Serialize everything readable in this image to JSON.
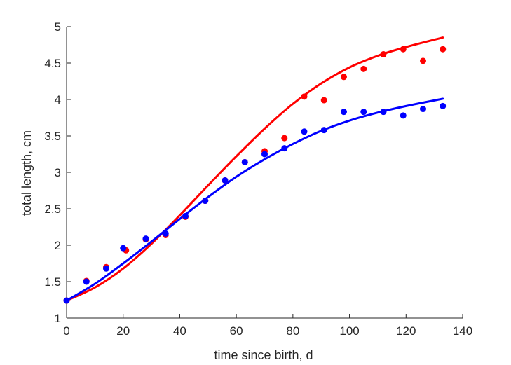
{
  "chart_data": {
    "type": "scatter",
    "xlabel": "time since birth, d",
    "ylabel": "total length, cm",
    "xlim": [
      0,
      140
    ],
    "ylim": [
      1,
      5
    ],
    "xticks": [
      0,
      20,
      40,
      60,
      80,
      100,
      120,
      140
    ],
    "yticks": [
      1,
      1.5,
      2,
      2.5,
      3,
      3.5,
      4,
      4.5,
      5
    ],
    "xtick_labels": [
      "0",
      "20",
      "40",
      "60",
      "80",
      "100",
      "120",
      "140"
    ],
    "ytick_labels": [
      "1",
      "1.5",
      "2",
      "2.5",
      "3",
      "3.5",
      "4",
      "4.5",
      "5"
    ],
    "grid": false,
    "series": [
      {
        "color": "#ff0000",
        "points": [
          [
            0,
            1.24
          ],
          [
            7,
            1.51
          ],
          [
            14,
            1.7
          ],
          [
            21,
            1.93
          ],
          [
            28,
            2.08
          ],
          [
            35,
            2.14
          ],
          [
            42,
            2.39
          ],
          [
            49,
            2.61
          ],
          [
            56,
            2.89
          ],
          [
            63,
            3.14
          ],
          [
            70,
            3.29
          ],
          [
            77,
            3.47
          ],
          [
            84,
            4.04
          ],
          [
            91,
            3.99
          ],
          [
            98,
            4.31
          ],
          [
            105,
            4.42
          ],
          [
            112,
            4.62
          ],
          [
            119,
            4.69
          ],
          [
            126,
            4.53
          ],
          [
            133,
            4.69
          ]
        ],
        "fit": [
          [
            0,
            1.24
          ],
          [
            10,
            1.42
          ],
          [
            20,
            1.68
          ],
          [
            30,
            2.02
          ],
          [
            40,
            2.41
          ],
          [
            50,
            2.82
          ],
          [
            60,
            3.22
          ],
          [
            70,
            3.6
          ],
          [
            80,
            3.94
          ],
          [
            90,
            4.22
          ],
          [
            100,
            4.44
          ],
          [
            110,
            4.6
          ],
          [
            120,
            4.72
          ],
          [
            133,
            4.85
          ]
        ]
      },
      {
        "color": "#0000ff",
        "points": [
          [
            0,
            1.24
          ],
          [
            7,
            1.5
          ],
          [
            14,
            1.68
          ],
          [
            20,
            1.96
          ],
          [
            28,
            2.09
          ],
          [
            35,
            2.16
          ],
          [
            42,
            2.4
          ],
          [
            49,
            2.61
          ],
          [
            56,
            2.89
          ],
          [
            63,
            3.14
          ],
          [
            70,
            3.25
          ],
          [
            77,
            3.33
          ],
          [
            84,
            3.56
          ],
          [
            91,
            3.58
          ],
          [
            98,
            3.83
          ],
          [
            105,
            3.83
          ],
          [
            112,
            3.83
          ],
          [
            119,
            3.78
          ],
          [
            126,
            3.87
          ],
          [
            133,
            3.91
          ]
        ],
        "fit": [
          [
            0,
            1.24
          ],
          [
            10,
            1.47
          ],
          [
            20,
            1.75
          ],
          [
            30,
            2.05
          ],
          [
            40,
            2.36
          ],
          [
            50,
            2.66
          ],
          [
            60,
            2.94
          ],
          [
            70,
            3.18
          ],
          [
            80,
            3.39
          ],
          [
            90,
            3.57
          ],
          [
            100,
            3.71
          ],
          [
            110,
            3.82
          ],
          [
            120,
            3.91
          ],
          [
            133,
            4.01
          ]
        ]
      }
    ]
  }
}
